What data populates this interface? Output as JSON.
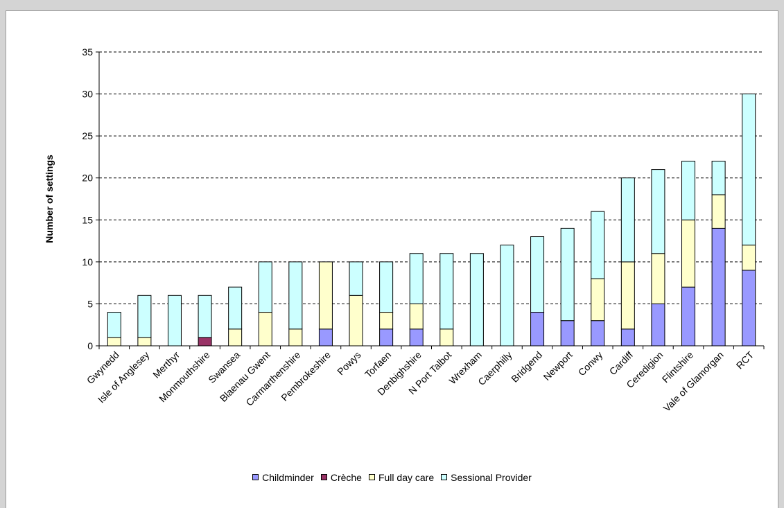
{
  "chart_data": {
    "type": "bar",
    "stacked": true,
    "title": "",
    "xlabel": "",
    "ylabel": "Number of settings",
    "ylim": [
      0,
      35
    ],
    "yticks": [
      0,
      5,
      10,
      15,
      20,
      25,
      30,
      35
    ],
    "grid": true,
    "legend_position": "bottom",
    "categories": [
      "Gwynedd",
      "Isle of Anglesey",
      "Merthyr",
      "Monmouthshire",
      "Swansea",
      "Blaenau Gwent",
      "Carmarthenshire",
      "Pembrokeshire",
      "Powys",
      "Torfaen",
      "Denbighshire",
      "N Port Talbot",
      "Wrexham",
      "Caerphilly",
      "Bridgend",
      "Newport",
      "Conwy",
      "Cardiff",
      "Ceredigion",
      "Flintshire",
      "Vale of Glamorgan",
      "RCT"
    ],
    "series": [
      {
        "name": "Childminder",
        "color": "#9999ff",
        "values": [
          0,
          0,
          0,
          0,
          0,
          0,
          0,
          2,
          0,
          2,
          2,
          0,
          0,
          0,
          4,
          3,
          3,
          2,
          5,
          7,
          14,
          9
        ]
      },
      {
        "name": "Crèche",
        "color": "#993366",
        "values": [
          0,
          0,
          0,
          1,
          0,
          0,
          0,
          0,
          0,
          0,
          0,
          0,
          0,
          0,
          0,
          0,
          0,
          0,
          0,
          0,
          0,
          0
        ]
      },
      {
        "name": "Full day care",
        "color": "#ffffcc",
        "values": [
          1,
          1,
          0,
          0,
          2,
          4,
          2,
          8,
          6,
          2,
          3,
          2,
          0,
          0,
          0,
          0,
          5,
          8,
          6,
          8,
          4,
          3
        ]
      },
      {
        "name": "Sessional Provider",
        "color": "#ccffff",
        "values": [
          3,
          5,
          6,
          5,
          5,
          6,
          8,
          0,
          4,
          6,
          6,
          9,
          11,
          12,
          9,
          11,
          8,
          10,
          10,
          7,
          4,
          18
        ]
      }
    ]
  }
}
